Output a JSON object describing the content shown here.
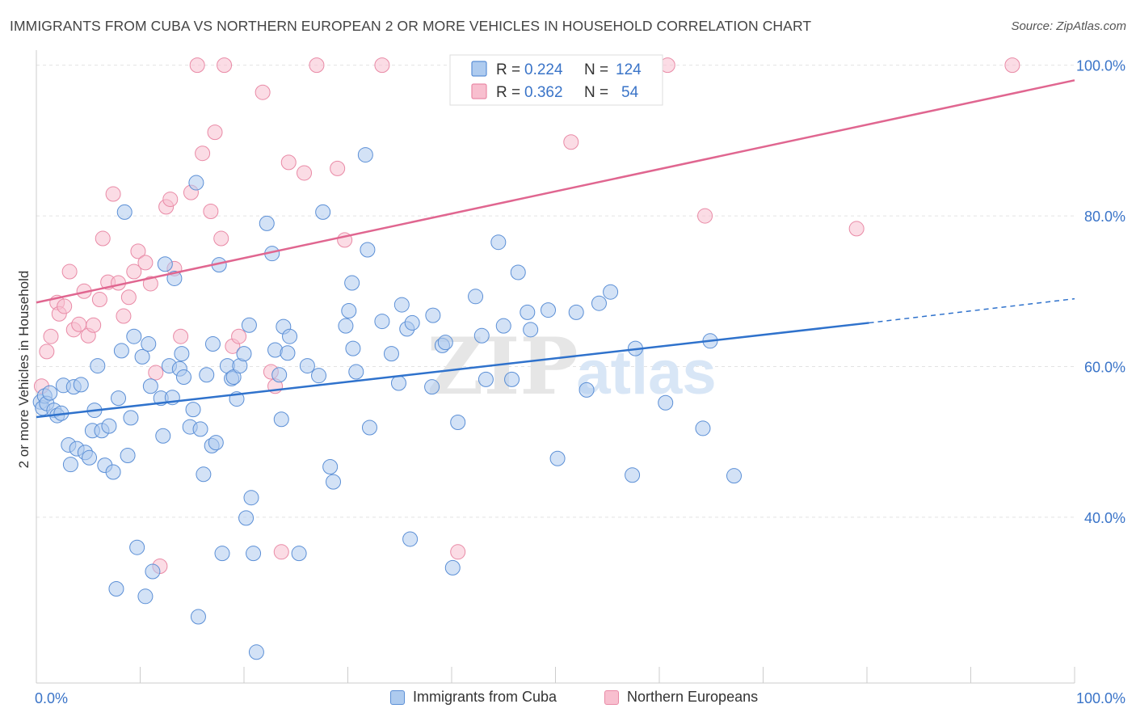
{
  "title": "IMMIGRANTS FROM CUBA VS NORTHERN EUROPEAN 2 OR MORE VEHICLES IN HOUSEHOLD CORRELATION CHART",
  "source": "Source: ZipAtlas.com",
  "watermark": {
    "zip": "ZIP",
    "atlas": "atlas"
  },
  "legend": {
    "rows": [
      {
        "r_label": "R =",
        "r_value": "0.224",
        "n_label": "N =",
        "n_value": "124"
      },
      {
        "r_label": "R =",
        "r_value": "0.362",
        "n_label": "N =",
        "n_value": "54"
      }
    ]
  },
  "bottom_legend": [
    {
      "label": "Immigrants from Cuba"
    },
    {
      "label": "Northern Europeans"
    }
  ],
  "colors": {
    "cuba_fill": "#aecbef",
    "cuba_stroke": "#5b8fd6",
    "cuba_line": "#2f72cc",
    "ne_fill": "#f8bfcf",
    "ne_stroke": "#e98aa6",
    "ne_line": "#e06690",
    "axis_label": "#3a74c8",
    "grid": "#e3e3e3"
  },
  "chart_data": {
    "type": "scatter",
    "ylabel": "2 or more Vehicles in Household",
    "xlim": [
      0,
      100
    ],
    "ylim": [
      18,
      102
    ],
    "x_tick_labels": [
      "0.0%",
      "100.0%"
    ],
    "y_ticks": [
      40,
      60,
      80,
      100
    ],
    "y_tick_labels": [
      "40.0%",
      "60.0%",
      "80.0%",
      "100.0%"
    ],
    "grid": true,
    "series": [
      {
        "name": "Immigrants from Cuba",
        "r": 0.224,
        "n": 124,
        "trend": {
          "x0": 0,
          "y0": 53.3,
          "x1": 80.2,
          "y1": 65.8,
          "dash_to_x": 100,
          "dash_to_y": 69.0
        },
        "points": [
          [
            0.4,
            55.3
          ],
          [
            0.6,
            54.5
          ],
          [
            0.8,
            56.1
          ],
          [
            1.0,
            55.1
          ],
          [
            1.3,
            56.5
          ],
          [
            1.7,
            54.2
          ],
          [
            2.0,
            53.5
          ],
          [
            2.4,
            53.8
          ],
          [
            2.6,
            57.5
          ],
          [
            3.1,
            49.6
          ],
          [
            3.3,
            47.0
          ],
          [
            3.6,
            57.3
          ],
          [
            3.9,
            49.1
          ],
          [
            4.3,
            57.6
          ],
          [
            4.7,
            48.6
          ],
          [
            5.1,
            47.9
          ],
          [
            5.4,
            51.5
          ],
          [
            5.6,
            54.2
          ],
          [
            5.9,
            60.1
          ],
          [
            6.3,
            51.5
          ],
          [
            6.6,
            46.9
          ],
          [
            7.0,
            52.1
          ],
          [
            7.4,
            46.0
          ],
          [
            7.7,
            30.5
          ],
          [
            7.9,
            55.8
          ],
          [
            8.2,
            62.1
          ],
          [
            8.5,
            80.5
          ],
          [
            8.8,
            48.2
          ],
          [
            9.1,
            53.2
          ],
          [
            9.4,
            64.0
          ],
          [
            9.7,
            36.0
          ],
          [
            10.2,
            61.3
          ],
          [
            10.5,
            29.5
          ],
          [
            10.8,
            63.0
          ],
          [
            11.0,
            57.4
          ],
          [
            11.2,
            32.8
          ],
          [
            12.0,
            55.8
          ],
          [
            12.2,
            50.8
          ],
          [
            12.4,
            73.6
          ],
          [
            12.8,
            60.1
          ],
          [
            13.1,
            55.9
          ],
          [
            13.3,
            71.7
          ],
          [
            13.8,
            59.7
          ],
          [
            14.0,
            61.7
          ],
          [
            14.2,
            58.6
          ],
          [
            14.8,
            52.0
          ],
          [
            15.1,
            54.3
          ],
          [
            15.4,
            84.4
          ],
          [
            15.6,
            26.8
          ],
          [
            15.8,
            51.7
          ],
          [
            16.1,
            45.7
          ],
          [
            16.4,
            58.9
          ],
          [
            16.9,
            49.5
          ],
          [
            17.0,
            63.0
          ],
          [
            17.3,
            49.9
          ],
          [
            17.6,
            73.5
          ],
          [
            17.9,
            35.2
          ],
          [
            18.4,
            60.1
          ],
          [
            18.8,
            58.4
          ],
          [
            19.0,
            58.6
          ],
          [
            19.3,
            55.7
          ],
          [
            19.6,
            60.1
          ],
          [
            20.0,
            61.7
          ],
          [
            20.2,
            39.9
          ],
          [
            20.5,
            65.5
          ],
          [
            20.7,
            42.6
          ],
          [
            20.9,
            35.2
          ],
          [
            21.2,
            22.1
          ],
          [
            22.2,
            79.0
          ],
          [
            22.7,
            75.0
          ],
          [
            23.0,
            62.2
          ],
          [
            23.4,
            58.9
          ],
          [
            23.6,
            53.0
          ],
          [
            23.8,
            65.3
          ],
          [
            24.2,
            61.8
          ],
          [
            24.4,
            64.0
          ],
          [
            25.3,
            35.2
          ],
          [
            26.1,
            60.1
          ],
          [
            27.2,
            58.8
          ],
          [
            27.6,
            80.5
          ],
          [
            28.3,
            46.7
          ],
          [
            28.6,
            44.7
          ],
          [
            29.8,
            65.4
          ],
          [
            30.1,
            67.4
          ],
          [
            30.4,
            71.1
          ],
          [
            30.5,
            62.4
          ],
          [
            30.8,
            59.3
          ],
          [
            31.7,
            88.1
          ],
          [
            32.1,
            51.9
          ],
          [
            33.3,
            66.0
          ],
          [
            34.2,
            61.7
          ],
          [
            34.9,
            57.8
          ],
          [
            35.2,
            68.2
          ],
          [
            35.7,
            65.0
          ],
          [
            36.2,
            65.8
          ],
          [
            38.1,
            57.3
          ],
          [
            38.2,
            66.8
          ],
          [
            39.1,
            62.8
          ],
          [
            39.4,
            63.2
          ],
          [
            40.1,
            33.3
          ],
          [
            40.6,
            52.6
          ],
          [
            42.3,
            69.3
          ],
          [
            42.9,
            64.1
          ],
          [
            43.3,
            58.3
          ],
          [
            45.0,
            65.4
          ],
          [
            45.8,
            58.3
          ],
          [
            46.4,
            72.5
          ],
          [
            47.3,
            67.2
          ],
          [
            47.6,
            64.9
          ],
          [
            49.3,
            67.5
          ],
          [
            50.2,
            47.8
          ],
          [
            52.0,
            67.2
          ],
          [
            53.0,
            56.9
          ],
          [
            54.2,
            68.4
          ],
          [
            55.3,
            69.9
          ],
          [
            57.4,
            45.6
          ],
          [
            57.7,
            62.4
          ],
          [
            60.6,
            55.2
          ],
          [
            64.2,
            51.8
          ],
          [
            64.9,
            63.4
          ],
          [
            67.2,
            45.5
          ],
          [
            44.5,
            76.5
          ],
          [
            36.0,
            37.1
          ],
          [
            31.9,
            75.5
          ]
        ]
      },
      {
        "name": "Northern Europeans",
        "r": 0.362,
        "n": 54,
        "trend": {
          "x0": 0,
          "y0": 68.5,
          "x1": 100,
          "y1": 98.0
        },
        "points": [
          [
            0.5,
            57.4
          ],
          [
            1.0,
            62.0
          ],
          [
            1.4,
            64.0
          ],
          [
            2.0,
            68.5
          ],
          [
            2.2,
            67.0
          ],
          [
            2.7,
            68.0
          ],
          [
            3.2,
            72.6
          ],
          [
            3.6,
            64.9
          ],
          [
            4.1,
            65.6
          ],
          [
            4.6,
            70.0
          ],
          [
            5.0,
            64.1
          ],
          [
            5.5,
            65.5
          ],
          [
            6.1,
            68.9
          ],
          [
            6.4,
            77.0
          ],
          [
            6.9,
            71.2
          ],
          [
            7.4,
            82.9
          ],
          [
            7.9,
            71.1
          ],
          [
            8.4,
            66.7
          ],
          [
            8.9,
            69.2
          ],
          [
            9.4,
            72.6
          ],
          [
            9.8,
            75.3
          ],
          [
            10.5,
            73.8
          ],
          [
            11.0,
            71.0
          ],
          [
            11.5,
            59.2
          ],
          [
            11.9,
            33.5
          ],
          [
            12.5,
            81.2
          ],
          [
            12.9,
            82.2
          ],
          [
            13.3,
            73.0
          ],
          [
            13.9,
            64.0
          ],
          [
            14.9,
            83.1
          ],
          [
            15.5,
            100.0
          ],
          [
            16.0,
            88.3
          ],
          [
            16.8,
            80.6
          ],
          [
            17.2,
            91.1
          ],
          [
            17.8,
            77.0
          ],
          [
            18.1,
            100.0
          ],
          [
            18.9,
            62.7
          ],
          [
            19.5,
            64.0
          ],
          [
            21.8,
            96.4
          ],
          [
            22.6,
            59.3
          ],
          [
            23.0,
            57.4
          ],
          [
            23.6,
            35.4
          ],
          [
            24.3,
            87.1
          ],
          [
            25.8,
            85.7
          ],
          [
            27.0,
            100.0
          ],
          [
            29.0,
            86.3
          ],
          [
            29.7,
            76.8
          ],
          [
            33.3,
            100.0
          ],
          [
            40.6,
            35.4
          ],
          [
            51.5,
            89.8
          ],
          [
            60.8,
            100.0
          ],
          [
            64.4,
            80.0
          ],
          [
            79.0,
            78.3
          ],
          [
            94.0,
            100.0
          ]
        ]
      }
    ]
  }
}
